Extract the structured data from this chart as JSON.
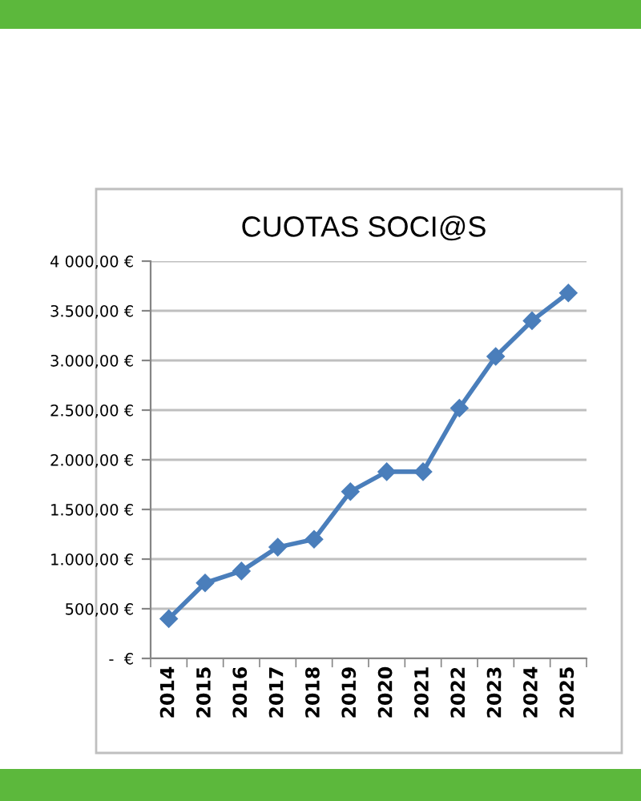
{
  "chart_data": {
    "type": "line",
    "title": "CUOTAS SOCI@S",
    "categories": [
      "2014",
      "2015",
      "2016",
      "2017",
      "2018",
      "2019",
      "2020",
      "2021",
      "2022",
      "2023",
      "2024",
      "2025"
    ],
    "series": [
      {
        "color": "#4a7ebb",
        "values": [
          400,
          760,
          880,
          1120,
          1200,
          1680,
          1880,
          1880,
          2520,
          3040,
          3400,
          3680
        ]
      }
    ],
    "ylim": [
      0,
      4000
    ],
    "yticks": [
      {
        "value": 0,
        "label": "-  €"
      },
      {
        "value": 500,
        "label": "500,00 €"
      },
      {
        "value": 1000,
        "label": "1.000,00 €"
      },
      {
        "value": 1500,
        "label": "1.500,00 €"
      },
      {
        "value": 2000,
        "label": "2.000,00 €"
      },
      {
        "value": 2500,
        "label": "2.500,00 €"
      },
      {
        "value": 3000,
        "label": "3.000,00 €"
      },
      {
        "value": 3500,
        "label": "3.500,00 €"
      },
      {
        "value": 4000,
        "label": "4 000,00 €"
      }
    ],
    "grid": "y",
    "marker": "diamond",
    "line_style": "solid"
  }
}
